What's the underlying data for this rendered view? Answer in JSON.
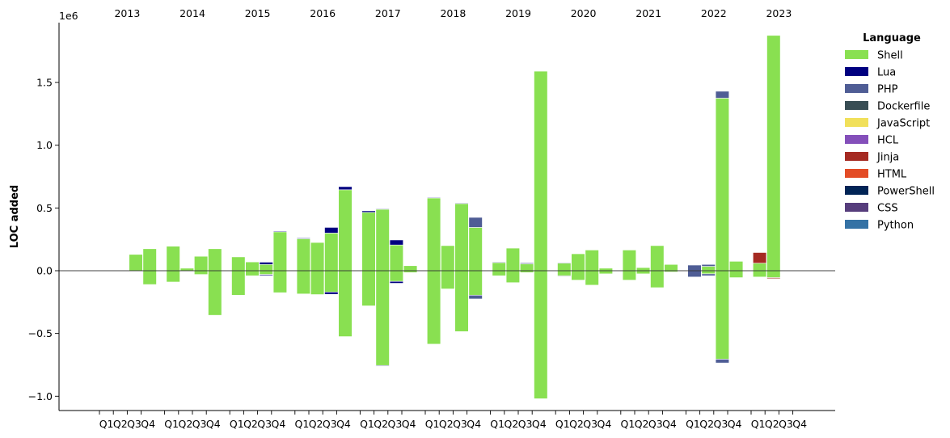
{
  "chart_data": {
    "type": "bar",
    "subtype": "stacked-diverging",
    "ylabel": "LOC added",
    "offset_text": "1e6",
    "ylim": [
      -1.1,
      2.0
    ],
    "yticks": [
      -1.0,
      -0.5,
      0.0,
      0.5,
      1.0,
      1.5
    ],
    "ytick_labels": [
      "−1.0",
      "−0.5",
      "0.0",
      "0.5",
      "1.0",
      "1.5"
    ],
    "years": [
      "2013",
      "2014",
      "2015",
      "2016",
      "2017",
      "2018",
      "2019",
      "2020",
      "2021",
      "2022",
      "2023"
    ],
    "quarter_labels": [
      "Q1",
      "Q2",
      "Q3",
      "Q4"
    ],
    "legend": {
      "title": "Language",
      "position": "right",
      "entries": [
        {
          "name": "Shell",
          "color": "#89e051"
        },
        {
          "name": "Lua",
          "color": "#000080"
        },
        {
          "name": "PHP",
          "color": "#4F5D95"
        },
        {
          "name": "Dockerfile",
          "color": "#384d54"
        },
        {
          "name": "JavaScript",
          "color": "#f1e05a"
        },
        {
          "name": "HCL",
          "color": "#844FBA"
        },
        {
          "name": "Jinja",
          "color": "#a52a22"
        },
        {
          "name": "HTML",
          "color": "#e34c26"
        },
        {
          "name": "PowerShell",
          "color": "#012456"
        },
        {
          "name": "CSS",
          "color": "#563d7c"
        },
        {
          "name": "Python",
          "color": "#3572A5"
        }
      ]
    },
    "bars": [
      {
        "year": "2013",
        "quarter": "Q3",
        "pos": [
          {
            "lang": "Shell",
            "value": 0.13
          }
        ],
        "neg": []
      },
      {
        "year": "2013",
        "quarter": "Q4",
        "pos": [
          {
            "lang": "Shell",
            "value": 0.175
          }
        ],
        "neg": [
          {
            "lang": "Shell",
            "value": 0.11
          }
        ]
      },
      {
        "year": "2014",
        "quarter": "Q1",
        "pos": [
          {
            "lang": "Shell",
            "value": 0.195
          }
        ],
        "neg": [
          {
            "lang": "Shell",
            "value": 0.09
          }
        ]
      },
      {
        "year": "2014",
        "quarter": "Q2",
        "pos": [
          {
            "lang": "Shell",
            "value": 0.02
          }
        ],
        "neg": []
      },
      {
        "year": "2014",
        "quarter": "Q3",
        "pos": [
          {
            "lang": "Shell",
            "value": 0.115
          }
        ],
        "neg": [
          {
            "lang": "Shell",
            "value": 0.03
          }
        ]
      },
      {
        "year": "2014",
        "quarter": "Q4",
        "pos": [
          {
            "lang": "Shell",
            "value": 0.175
          }
        ],
        "neg": [
          {
            "lang": "Shell",
            "value": 0.355
          }
        ]
      },
      {
        "year": "2015",
        "quarter": "Q1",
        "pos": [
          {
            "lang": "Shell",
            "value": 0.11
          }
        ],
        "neg": [
          {
            "lang": "Shell",
            "value": 0.195
          }
        ]
      },
      {
        "year": "2015",
        "quarter": "Q2",
        "pos": [
          {
            "lang": "Shell",
            "value": 0.07
          }
        ],
        "neg": [
          {
            "lang": "Shell",
            "value": 0.04
          }
        ]
      },
      {
        "year": "2015",
        "quarter": "Q3",
        "pos": [
          {
            "lang": "Shell",
            "value": 0.05
          },
          {
            "lang": "Lua",
            "value": 0.018
          }
        ],
        "neg": [
          {
            "lang": "Shell",
            "value": 0.03
          },
          {
            "lang": "Lua",
            "value": 0.008
          }
        ]
      },
      {
        "year": "2015",
        "quarter": "Q4",
        "pos": [
          {
            "lang": "Shell",
            "value": 0.31
          },
          {
            "lang": "Lua",
            "value": 0.006
          }
        ],
        "neg": [
          {
            "lang": "Shell",
            "value": 0.175
          }
        ]
      },
      {
        "year": "2016",
        "quarter": "Q1",
        "pos": [
          {
            "lang": "Shell",
            "value": 0.255
          },
          {
            "lang": "Lua",
            "value": 0.006
          }
        ],
        "neg": [
          {
            "lang": "Shell",
            "value": 0.185
          }
        ]
      },
      {
        "year": "2016",
        "quarter": "Q2",
        "pos": [
          {
            "lang": "Shell",
            "value": 0.225
          }
        ],
        "neg": [
          {
            "lang": "Shell",
            "value": 0.19
          }
        ]
      },
      {
        "year": "2016",
        "quarter": "Q3",
        "pos": [
          {
            "lang": "Shell",
            "value": 0.3
          },
          {
            "lang": "Lua",
            "value": 0.045
          }
        ],
        "neg": [
          {
            "lang": "Shell",
            "value": 0.17
          },
          {
            "lang": "Lua",
            "value": 0.018
          }
        ]
      },
      {
        "year": "2016",
        "quarter": "Q4",
        "pos": [
          {
            "lang": "Shell",
            "value": 0.645
          },
          {
            "lang": "Lua",
            "value": 0.025
          }
        ],
        "neg": [
          {
            "lang": "Shell",
            "value": 0.525
          }
        ]
      },
      {
        "year": "2017",
        "quarter": "Q1",
        "pos": [
          {
            "lang": "Shell",
            "value": 0.465
          },
          {
            "lang": "Lua",
            "value": 0.012
          }
        ],
        "neg": [
          {
            "lang": "Shell",
            "value": 0.28
          }
        ]
      },
      {
        "year": "2017",
        "quarter": "Q2",
        "pos": [
          {
            "lang": "Shell",
            "value": 0.49
          },
          {
            "lang": "Lua",
            "value": 0.005
          }
        ],
        "neg": [
          {
            "lang": "Shell",
            "value": 0.755
          },
          {
            "lang": "Lua",
            "value": 0.005
          }
        ]
      },
      {
        "year": "2017",
        "quarter": "Q3",
        "pos": [
          {
            "lang": "Shell",
            "value": 0.205
          },
          {
            "lang": "Lua",
            "value": 0.04
          }
        ],
        "neg": [
          {
            "lang": "Shell",
            "value": 0.085
          },
          {
            "lang": "Lua",
            "value": 0.015
          }
        ]
      },
      {
        "year": "2017",
        "quarter": "Q4",
        "pos": [
          {
            "lang": "Shell",
            "value": 0.04
          }
        ],
        "neg": [
          {
            "lang": "Shell",
            "value": 0.015
          }
        ]
      },
      {
        "year": "2018",
        "quarter": "Q1",
        "pos": [
          {
            "lang": "Shell",
            "value": 0.58
          },
          {
            "lang": "Lua",
            "value": 0.005
          }
        ],
        "neg": [
          {
            "lang": "Shell",
            "value": 0.585
          }
        ]
      },
      {
        "year": "2018",
        "quarter": "Q2",
        "pos": [
          {
            "lang": "Shell",
            "value": 0.2
          }
        ],
        "neg": [
          {
            "lang": "Shell",
            "value": 0.145
          }
        ]
      },
      {
        "year": "2018",
        "quarter": "Q3",
        "pos": [
          {
            "lang": "Shell",
            "value": 0.535
          },
          {
            "lang": "Lua",
            "value": 0.005
          }
        ],
        "neg": [
          {
            "lang": "Shell",
            "value": 0.485
          }
        ]
      },
      {
        "year": "2018",
        "quarter": "Q4",
        "pos": [
          {
            "lang": "Shell",
            "value": 0.345
          },
          {
            "lang": "PHP",
            "value": 0.08
          }
        ],
        "neg": [
          {
            "lang": "Shell",
            "value": 0.195
          },
          {
            "lang": "PHP",
            "value": 0.03
          }
        ]
      },
      {
        "year": "2019",
        "quarter": "Q1",
        "pos": [
          {
            "lang": "Shell",
            "value": 0.065
          },
          {
            "lang": "Lua",
            "value": 0.005
          }
        ],
        "neg": [
          {
            "lang": "Shell",
            "value": 0.04
          }
        ]
      },
      {
        "year": "2019",
        "quarter": "Q2",
        "pos": [
          {
            "lang": "Shell",
            "value": 0.18
          }
        ],
        "neg": [
          {
            "lang": "Shell",
            "value": 0.095
          }
        ]
      },
      {
        "year": "2019",
        "quarter": "Q3",
        "pos": [
          {
            "lang": "Shell",
            "value": 0.055
          },
          {
            "lang": "PHP",
            "value": 0.008
          }
        ],
        "neg": [
          {
            "lang": "Shell",
            "value": 0.015
          }
        ]
      },
      {
        "year": "2019",
        "quarter": "Q4",
        "pos": [
          {
            "lang": "Shell",
            "value": 1.59
          }
        ],
        "neg": [
          {
            "lang": "Shell",
            "value": 1.02
          }
        ]
      },
      {
        "year": "2020",
        "quarter": "Q1",
        "pos": [
          {
            "lang": "Shell",
            "value": 0.06
          },
          {
            "lang": "PHP",
            "value": 0.005
          }
        ],
        "neg": [
          {
            "lang": "Shell",
            "value": 0.04
          },
          {
            "lang": "Dockerfile",
            "value": 0.005
          }
        ]
      },
      {
        "year": "2020",
        "quarter": "Q2",
        "pos": [
          {
            "lang": "Shell",
            "value": 0.135
          }
        ],
        "neg": [
          {
            "lang": "Shell",
            "value": 0.075
          }
        ]
      },
      {
        "year": "2020",
        "quarter": "Q3",
        "pos": [
          {
            "lang": "Shell",
            "value": 0.165
          }
        ],
        "neg": [
          {
            "lang": "Shell",
            "value": 0.115
          }
        ]
      },
      {
        "year": "2020",
        "quarter": "Q4",
        "pos": [
          {
            "lang": "Shell",
            "value": 0.02
          }
        ],
        "neg": [
          {
            "lang": "Shell",
            "value": 0.025
          }
        ]
      },
      {
        "year": "2021",
        "quarter": "Q1",
        "pos": [
          {
            "lang": "Shell",
            "value": 0.165
          }
        ],
        "neg": [
          {
            "lang": "Shell",
            "value": 0.075
          }
        ]
      },
      {
        "year": "2021",
        "quarter": "Q2",
        "pos": [
          {
            "lang": "Shell",
            "value": 0.025
          }
        ],
        "neg": [
          {
            "lang": "Shell",
            "value": 0.025
          }
        ]
      },
      {
        "year": "2021",
        "quarter": "Q3",
        "pos": [
          {
            "lang": "Shell",
            "value": 0.2
          }
        ],
        "neg": [
          {
            "lang": "Shell",
            "value": 0.135
          }
        ]
      },
      {
        "year": "2021",
        "quarter": "Q4",
        "pos": [
          {
            "lang": "Shell",
            "value": 0.05
          }
        ],
        "neg": [
          {
            "lang": "Shell",
            "value": 0.01
          }
        ]
      },
      {
        "year": "2022",
        "quarter": "Q1",
        "pos": [
          {
            "lang": "PHP",
            "value": 0.045
          }
        ],
        "neg": [
          {
            "lang": "PHP",
            "value": 0.05
          }
        ]
      },
      {
        "year": "2022",
        "quarter": "Q2",
        "pos": [
          {
            "lang": "Shell",
            "value": 0.035
          },
          {
            "lang": "PHP",
            "value": 0.015
          }
        ],
        "neg": [
          {
            "lang": "Shell",
            "value": 0.025
          },
          {
            "lang": "PHP",
            "value": 0.015
          }
        ]
      },
      {
        "year": "2022",
        "quarter": "Q3",
        "pos": [
          {
            "lang": "Shell",
            "value": 1.375
          },
          {
            "lang": "PHP",
            "value": 0.055
          }
        ],
        "neg": [
          {
            "lang": "Shell",
            "value": 0.705
          },
          {
            "lang": "PHP",
            "value": 0.03
          }
        ]
      },
      {
        "year": "2022",
        "quarter": "Q4",
        "pos": [
          {
            "lang": "Shell",
            "value": 0.075
          }
        ],
        "neg": [
          {
            "lang": "Shell",
            "value": 0.055
          }
        ]
      },
      {
        "year": "2023",
        "quarter": "Q1",
        "pos": [
          {
            "lang": "Shell",
            "value": 0.06
          },
          {
            "lang": "Jinja",
            "value": 0.085
          }
        ],
        "neg": [
          {
            "lang": "Shell",
            "value": 0.05
          }
        ]
      },
      {
        "year": "2023",
        "quarter": "Q2",
        "pos": [
          {
            "lang": "Shell",
            "value": 1.875
          }
        ],
        "neg": [
          {
            "lang": "Shell",
            "value": 0.055
          },
          {
            "lang": "Jinja",
            "value": 0.008
          }
        ]
      }
    ]
  }
}
